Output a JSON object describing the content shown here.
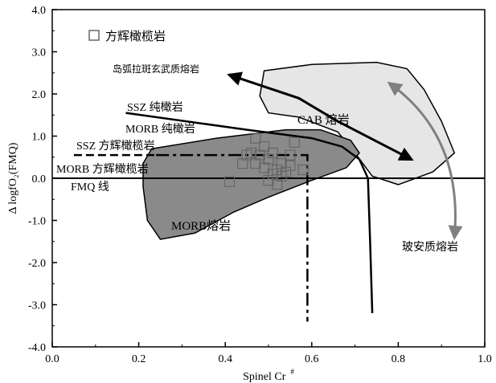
{
  "chart_data": {
    "type": "scatter",
    "xlabel": "Spinel Cr",
    "xlabel_sup": "#",
    "ylabel": "Δ logfO₂(FMQ)",
    "xlim": [
      0.0,
      1.0
    ],
    "ylim": [
      -4.0,
      4.0
    ],
    "x_ticks": [
      "0.0",
      "0.2",
      "0.4",
      "0.6",
      "0.8",
      "1.0"
    ],
    "y_ticks": [
      "4.0",
      "3.0",
      "2.0",
      "1.0",
      "0.0",
      "-1.0",
      "-2.0",
      "-3.0",
      "-4.0"
    ],
    "grid": false,
    "legend": {
      "position": "top-left",
      "label": "方辉橄榄岩",
      "marker": "open-square"
    },
    "series": [
      {
        "name": "方辉橄榄岩",
        "marker": "open-square",
        "points": [
          [
            0.41,
            -0.08
          ],
          [
            0.45,
            0.55
          ],
          [
            0.46,
            0.6
          ],
          [
            0.47,
            0.35
          ],
          [
            0.48,
            0.55
          ],
          [
            0.47,
            0.95
          ],
          [
            0.49,
            0.75
          ],
          [
            0.5,
            0.45
          ],
          [
            0.49,
            0.25
          ],
          [
            0.51,
            0.6
          ],
          [
            0.52,
            0.2
          ],
          [
            0.53,
            0.35
          ],
          [
            0.54,
            0.15
          ],
          [
            0.55,
            0.3
          ],
          [
            0.53,
            0.05
          ],
          [
            0.51,
            0.1
          ],
          [
            0.56,
            0.85
          ],
          [
            0.52,
            -0.15
          ],
          [
            0.55,
            0.55
          ],
          [
            0.58,
            0.2
          ],
          [
            0.5,
            -0.05
          ],
          [
            0.44,
            0.35
          ]
        ]
      }
    ],
    "regions": [
      {
        "label": "CAB 熔岩",
        "fill": "#e6e6e6"
      },
      {
        "label": "MORB熔岩",
        "fill": "#8a8a8a"
      }
    ],
    "lines": [
      {
        "label": "SSZ 纯橄岩",
        "style": "solid"
      },
      {
        "label": "MORB 纯橄岩",
        "style": "solid"
      },
      {
        "label": "SSZ 方辉橄榄岩",
        "style": "dashed"
      },
      {
        "label": "MORB 方辉橄榄岩",
        "style": "dash-dot"
      },
      {
        "label": "FMQ 线",
        "style": "solid",
        "y": 0.0
      }
    ],
    "annotations": [
      "岛弧拉斑玄武质熔岩",
      "玻安质熔岩"
    ],
    "colors": {
      "cab_fill": "#e6e6e6",
      "morb_fill": "#8a8a8a",
      "boninite_arrow": "#808080",
      "line": "#000000"
    }
  }
}
